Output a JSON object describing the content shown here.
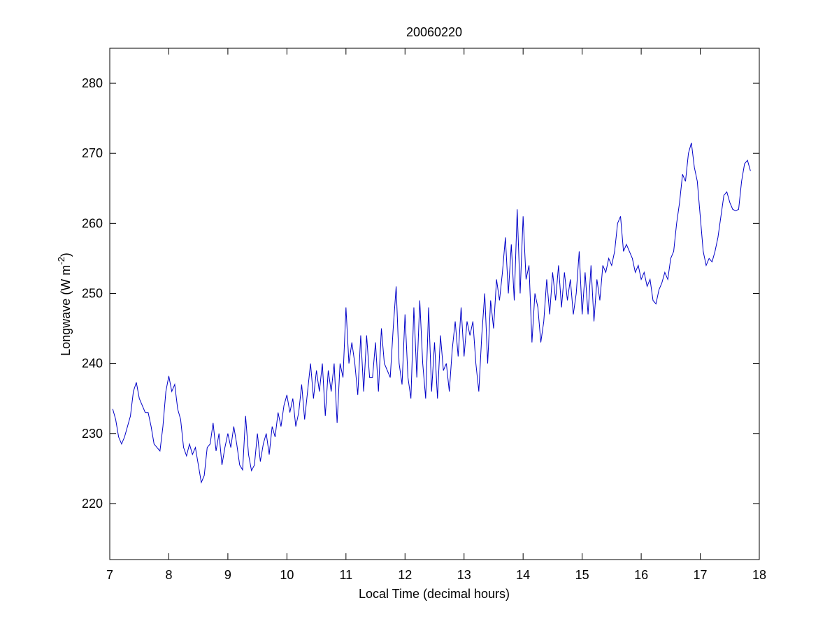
{
  "chart_data": {
    "type": "line",
    "title": "20060220",
    "xlabel": "Local Time (decimal hours)",
    "ylabel": "Longwave (W m",
    "ylabel_sup": "-2",
    "ylabel_end": ")",
    "x": [
      7.05,
      7.1,
      7.15,
      7.2,
      7.25,
      7.3,
      7.35,
      7.4,
      7.45,
      7.5,
      7.55,
      7.6,
      7.65,
      7.7,
      7.75,
      7.8,
      7.85,
      7.9,
      7.95,
      8.0,
      8.05,
      8.1,
      8.15,
      8.2,
      8.25,
      8.3,
      8.35,
      8.4,
      8.45,
      8.5,
      8.55,
      8.6,
      8.65,
      8.7,
      8.75,
      8.8,
      8.85,
      8.9,
      8.95,
      9.0,
      9.05,
      9.1,
      9.15,
      9.2,
      9.25,
      9.3,
      9.35,
      9.4,
      9.45,
      9.5,
      9.55,
      9.6,
      9.65,
      9.7,
      9.75,
      9.8,
      9.85,
      9.9,
      9.95,
      10.0,
      10.05,
      10.1,
      10.15,
      10.2,
      10.25,
      10.3,
      10.35,
      10.4,
      10.45,
      10.5,
      10.55,
      10.6,
      10.65,
      10.7,
      10.75,
      10.8,
      10.85,
      10.9,
      10.95,
      11.0,
      11.05,
      11.1,
      11.15,
      11.2,
      11.25,
      11.3,
      11.35,
      11.4,
      11.45,
      11.5,
      11.55,
      11.6,
      11.65,
      11.7,
      11.75,
      11.8,
      11.85,
      11.9,
      11.95,
      12.0,
      12.05,
      12.1,
      12.15,
      12.2,
      12.25,
      12.3,
      12.35,
      12.4,
      12.45,
      12.5,
      12.55,
      12.6,
      12.65,
      12.7,
      12.75,
      12.8,
      12.85,
      12.9,
      12.95,
      13.0,
      13.05,
      13.1,
      13.15,
      13.2,
      13.25,
      13.3,
      13.35,
      13.4,
      13.45,
      13.5,
      13.55,
      13.6,
      13.65,
      13.7,
      13.75,
      13.8,
      13.85,
      13.9,
      13.95,
      14.0,
      14.05,
      14.1,
      14.15,
      14.2,
      14.25,
      14.3,
      14.35,
      14.4,
      14.45,
      14.5,
      14.55,
      14.6,
      14.65,
      14.7,
      14.75,
      14.8,
      14.85,
      14.9,
      14.95,
      15.0,
      15.05,
      15.1,
      15.15,
      15.2,
      15.25,
      15.3,
      15.35,
      15.4,
      15.45,
      15.5,
      15.55,
      15.6,
      15.65,
      15.7,
      15.75,
      15.8,
      15.85,
      15.9,
      15.95,
      16.0,
      16.05,
      16.1,
      16.15,
      16.2,
      16.25,
      16.3,
      16.35,
      16.4,
      16.45,
      16.5,
      16.55,
      16.6,
      16.65,
      16.7,
      16.75,
      16.8,
      16.85,
      16.9,
      16.95,
      17.0,
      17.05,
      17.1,
      17.15,
      17.2,
      17.25,
      17.3,
      17.35,
      17.4,
      17.45,
      17.5,
      17.55,
      17.6,
      17.65,
      17.7,
      17.75,
      17.8,
      17.85
    ],
    "series": [
      {
        "name": "Longwave",
        "color": "#0000c8",
        "values": [
          233.5,
          232,
          229.5,
          228.5,
          229.5,
          231,
          232.5,
          236,
          237.3,
          235,
          234,
          233,
          233,
          231,
          228.5,
          228,
          227.5,
          231,
          236,
          238.2,
          236,
          237,
          233.5,
          232,
          228,
          226.8,
          228.5,
          227,
          228,
          225.5,
          223,
          224,
          228,
          228.5,
          231.5,
          227.5,
          230,
          225.5,
          228,
          230,
          228,
          231,
          228.5,
          225.5,
          224.8,
          232.5,
          227,
          224.7,
          225.5,
          230,
          226,
          228.5,
          230,
          227,
          231,
          229.5,
          233,
          231,
          234,
          235.5,
          233,
          235,
          231,
          233,
          237,
          232,
          236,
          240,
          235,
          239,
          236,
          240,
          232.5,
          239,
          236,
          240,
          231.5,
          240,
          238,
          248,
          240,
          243,
          240,
          235.5,
          244,
          236,
          244,
          238,
          238,
          243,
          236,
          245,
          240,
          239,
          238,
          245,
          251,
          240,
          237,
          247,
          238,
          235,
          248,
          238,
          249,
          240,
          235,
          248,
          236,
          243,
          235,
          244,
          239,
          240,
          236,
          242,
          246,
          241,
          248,
          241,
          246,
          244,
          246,
          240,
          236,
          244,
          250,
          240,
          249,
          245,
          252,
          249,
          253,
          258,
          250,
          257,
          249,
          262,
          250,
          261,
          252,
          254,
          243,
          250,
          248,
          243,
          246,
          252,
          247,
          253,
          249,
          254,
          248,
          253,
          249,
          252,
          247,
          250,
          256,
          247,
          253,
          247,
          254,
          246,
          252,
          249,
          254,
          253,
          255,
          254,
          256,
          260,
          261,
          256,
          257,
          256,
          255,
          253,
          254,
          252,
          253,
          251,
          252,
          249,
          248.5,
          250.5,
          251.5,
          253,
          252,
          255,
          256,
          260,
          263,
          267,
          266,
          270,
          271.5,
          268,
          266,
          261,
          256,
          254,
          255,
          254.5,
          256,
          258,
          261,
          264,
          264.5,
          263,
          262,
          261.8,
          262,
          266,
          268.5,
          269,
          267.5
        ]
      }
    ],
    "xlim": [
      7,
      18
    ],
    "xticks": [
      7,
      8,
      9,
      10,
      11,
      12,
      13,
      14,
      15,
      16,
      17,
      18
    ],
    "ylim": [
      212,
      285
    ],
    "yticks": [
      220,
      230,
      240,
      250,
      260,
      270,
      280
    ]
  }
}
